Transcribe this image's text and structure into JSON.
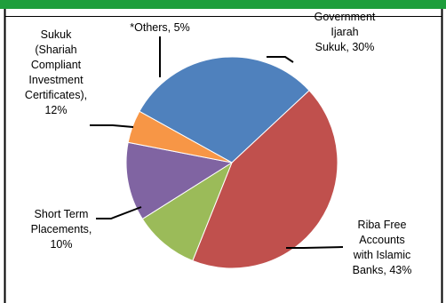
{
  "chart_data": {
    "type": "pie",
    "title": "",
    "legend": "none",
    "slices": [
      {
        "label": "Government Ijarah Sukuk, 30%",
        "label_lines": [
          "Government",
          "Ijarah",
          "Sukuk, 30%"
        ],
        "value": 30,
        "color": "#4F81BD"
      },
      {
        "label": "Riba Free Accounts with Islamic Banks, 43%",
        "label_lines": [
          "Riba Free",
          "Accounts",
          "with Islamic",
          "Banks, 43%"
        ],
        "value": 43,
        "color": "#C0504D"
      },
      {
        "label": "Short Term Placements, 10%",
        "label_lines": [
          "Short Term",
          "Placements,",
          "10%"
        ],
        "value": 10,
        "color": "#9BBB59"
      },
      {
        "label": "Sukuk (Shariah Compliant Investment Certificates), 12%",
        "label_lines": [
          "Sukuk",
          "(Shariah",
          "Compliant",
          "Investment",
          "Certificates),",
          "12%"
        ],
        "value": 12,
        "color": "#8064A2"
      },
      {
        "label": "*Others, 5%",
        "label_lines": [
          "*Others, 5%"
        ],
        "value": 5,
        "color": "#F79646"
      }
    ],
    "colors": {
      "top_bar": "#1E9E3C",
      "frame": "#000000"
    }
  }
}
